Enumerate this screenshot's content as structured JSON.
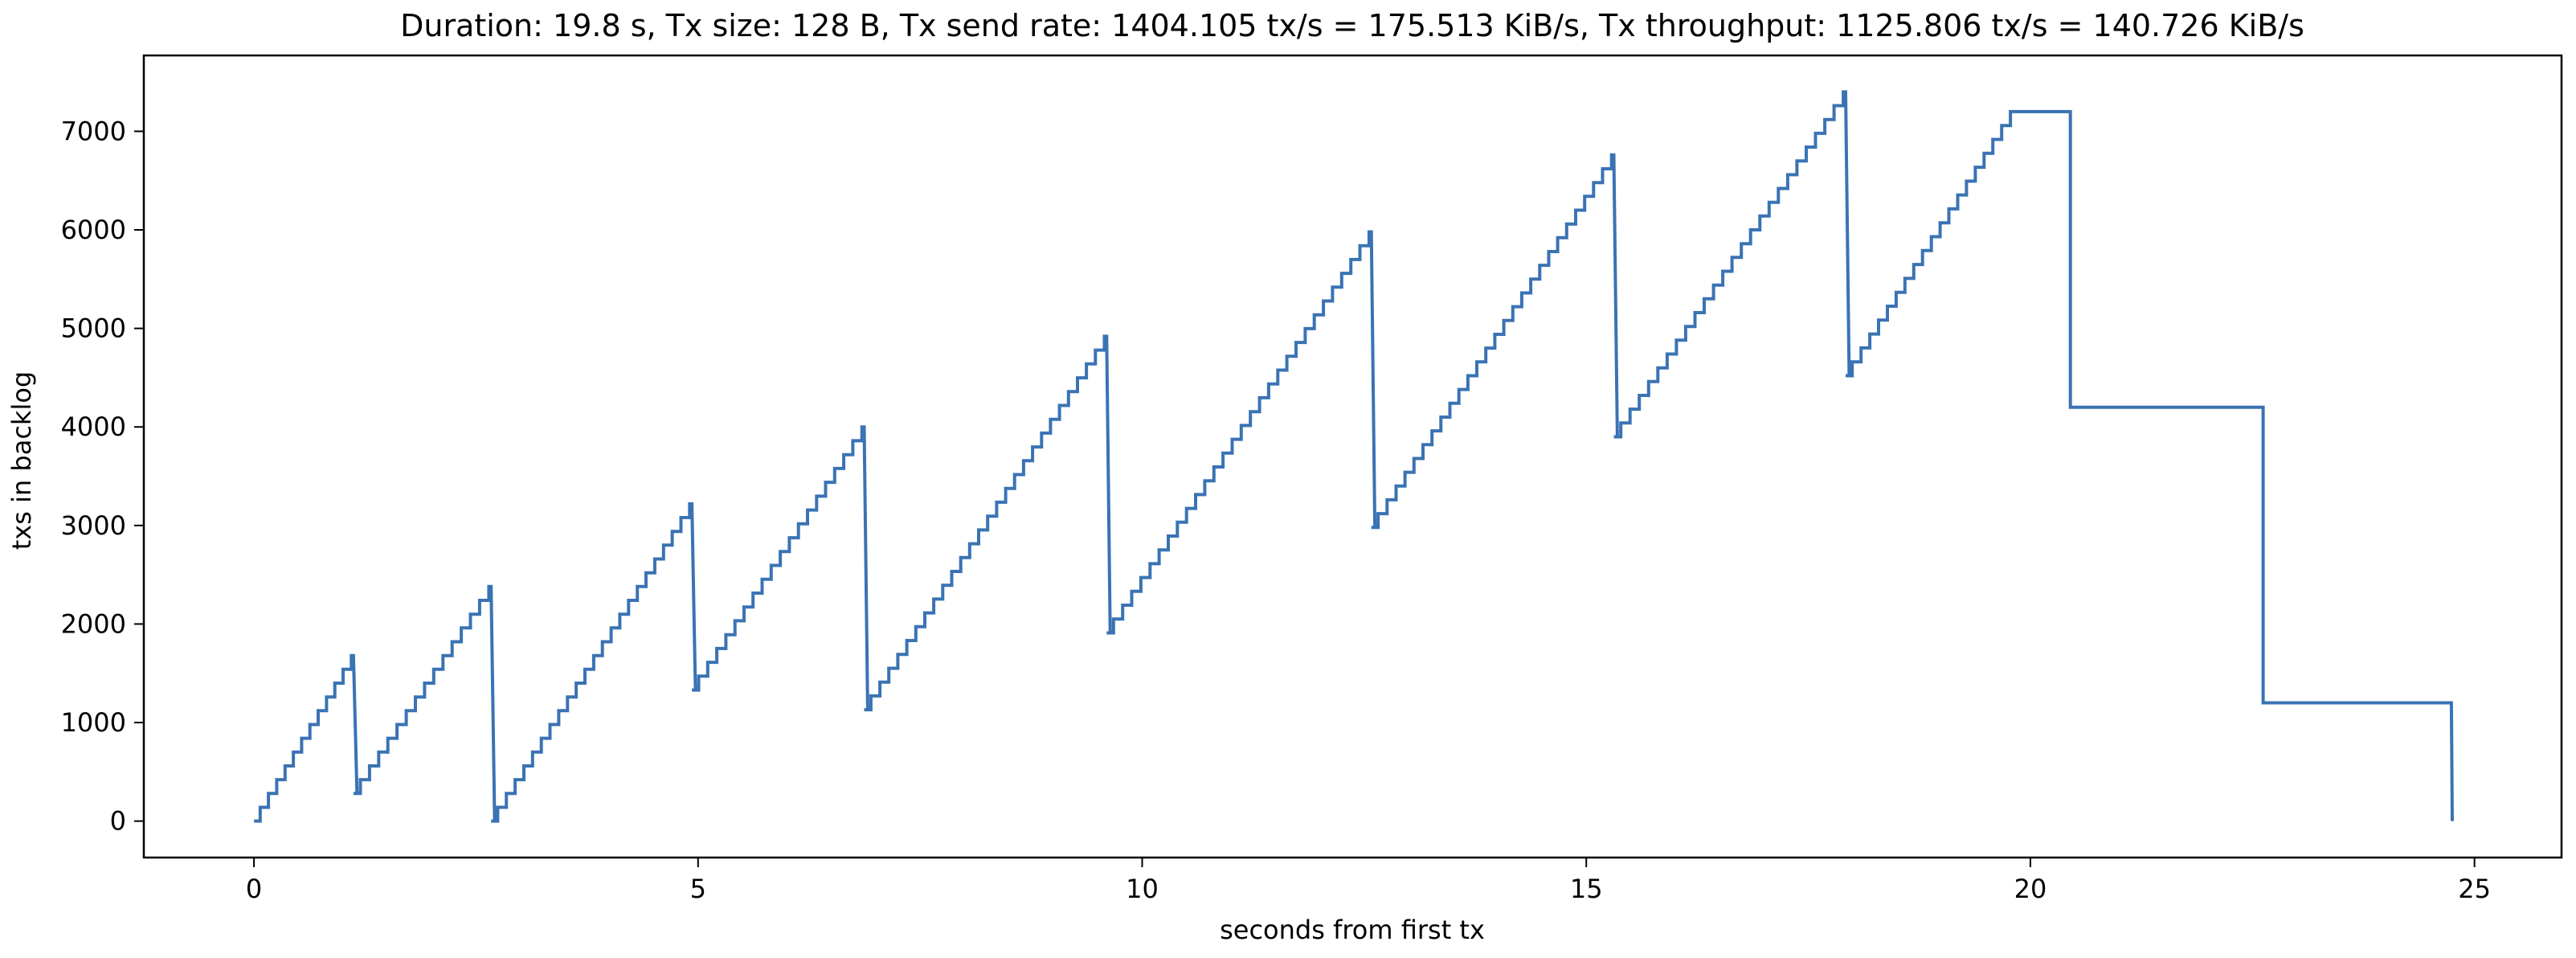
{
  "title": "Duration: 19.8 s, Tx size: 128 B, Tx send rate: 1404.105 tx/s = 175.513 KiB/s, Tx throughput: 1125.806 tx/s = 140.726 KiB/s",
  "colors": {
    "line": "#3a73b3",
    "axes": "#000000",
    "background": "#ffffff"
  },
  "chart_data": {
    "type": "line",
    "title": "Duration: 19.8 s, Tx size: 128 B, Tx send rate: 1404.105 tx/s = 175.513 KiB/s, Tx throughput: 1125.806 tx/s = 140.726 KiB/s",
    "xlabel": "seconds from first tx",
    "ylabel": "txs in backlog",
    "xlim": [
      -1.24,
      25.98
    ],
    "ylim": [
      -370,
      7770
    ],
    "xticks": [
      0,
      5,
      10,
      15,
      20,
      25
    ],
    "yticks": [
      0,
      1000,
      2000,
      3000,
      4000,
      5000,
      6000,
      7000
    ],
    "xtick_labels": [
      "0",
      "5",
      "10",
      "15",
      "20",
      "25"
    ],
    "ytick_labels": [
      "0",
      "1000",
      "2000",
      "3000",
      "4000",
      "5000",
      "6000",
      "7000"
    ],
    "grid": false,
    "legend": "none",
    "step_size": 140,
    "step_interval_s": 0.1,
    "series": [
      {
        "style": "step-ramp",
        "segments": [
          {
            "t0": 0.0,
            "v0": 0,
            "t1": 1.12,
            "v1": 1680,
            "drop_to": 280
          },
          {
            "t0": 1.12,
            "v0": 280,
            "t1": 2.67,
            "v1": 2380,
            "drop_to": 0
          },
          {
            "t0": 2.67,
            "v0": 0,
            "t1": 4.93,
            "v1": 3220,
            "drop_to": 1330
          },
          {
            "t0": 4.93,
            "v0": 1330,
            "t1": 6.87,
            "v1": 4000,
            "drop_to": 1130
          },
          {
            "t0": 6.87,
            "v0": 1130,
            "t1": 9.6,
            "v1": 4920,
            "drop_to": 1910
          },
          {
            "t0": 9.6,
            "v0": 1910,
            "t1": 12.58,
            "v1": 5980,
            "drop_to": 2980
          },
          {
            "t0": 12.58,
            "v0": 2980,
            "t1": 15.31,
            "v1": 6760,
            "drop_to": 3900
          },
          {
            "t0": 15.31,
            "v0": 3900,
            "t1": 17.92,
            "v1": 7400,
            "drop_to": 4520
          },
          {
            "t0": 17.92,
            "v0": 4520,
            "t1": 19.8,
            "v1": 7200,
            "drop_to": null
          }
        ],
        "tail": [
          [
            19.8,
            7200
          ],
          [
            20.45,
            7200
          ],
          [
            20.45,
            4200
          ],
          [
            22.62,
            4200
          ],
          [
            22.62,
            1200
          ],
          [
            24.74,
            1200
          ],
          [
            24.75,
            0
          ]
        ]
      }
    ]
  }
}
